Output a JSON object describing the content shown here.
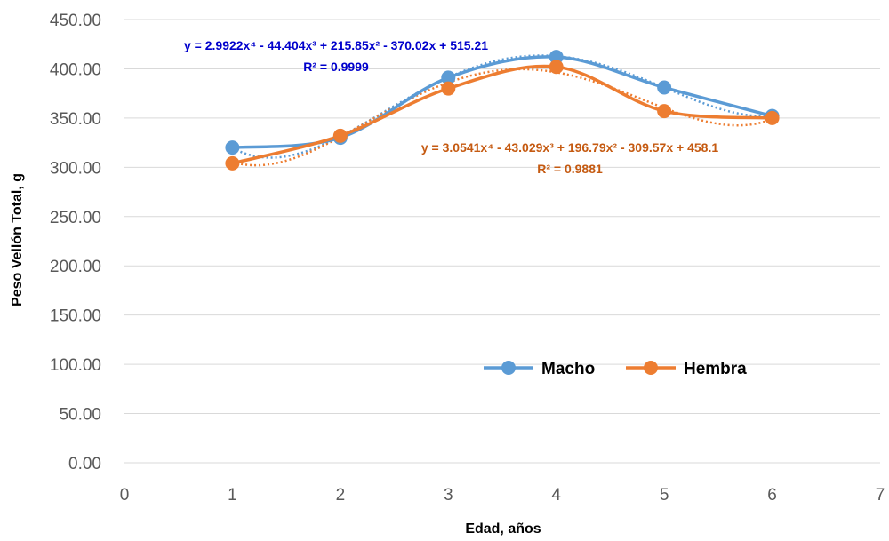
{
  "chart_data": {
    "type": "line",
    "xlabel": "Edad, años",
    "ylabel": "Peso Vellón Total, g",
    "xlim": [
      0,
      7
    ],
    "ylim": [
      0,
      450
    ],
    "x_ticks": [
      "0",
      "1",
      "2",
      "3",
      "4",
      "5",
      "6",
      "7"
    ],
    "y_ticks": [
      "0.00",
      "50.00",
      "100.00",
      "150.00",
      "200.00",
      "250.00",
      "300.00",
      "350.00",
      "400.00",
      "450.00"
    ],
    "grid": "horizontal",
    "legend_position": "bottom-right",
    "series": [
      {
        "name": "Macho",
        "color": "#5B9BD5",
        "x": [
          1,
          2,
          3,
          4,
          5,
          6
        ],
        "values": [
          320,
          330,
          391,
          412,
          381,
          352
        ],
        "trendline": {
          "type": "polynomial-4",
          "coefficients": [
            2.9922,
            -44.404,
            215.85,
            -370.02,
            515.21
          ],
          "equation": "y = 2.9922x⁴ - 44.404x³ + 215.85x² - 370.02x + 515.21",
          "r2_label": "R² = 0.9999",
          "label_color": "#0000CC"
        }
      },
      {
        "name": "Hembra",
        "color": "#ED7D31",
        "x": [
          1,
          2,
          3,
          4,
          5,
          6
        ],
        "values": [
          304,
          332,
          380,
          402,
          357,
          350
        ],
        "trendline": {
          "type": "polynomial-4",
          "coefficients": [
            3.0541,
            -43.029,
            196.79,
            -309.57,
            458.1
          ],
          "equation": "y = 3.0541x⁴ - 43.029x³ + 196.79x² - 309.57x + 458.1",
          "r2_label": "R² = 0.9881",
          "label_color": "#C55A11"
        }
      }
    ]
  }
}
